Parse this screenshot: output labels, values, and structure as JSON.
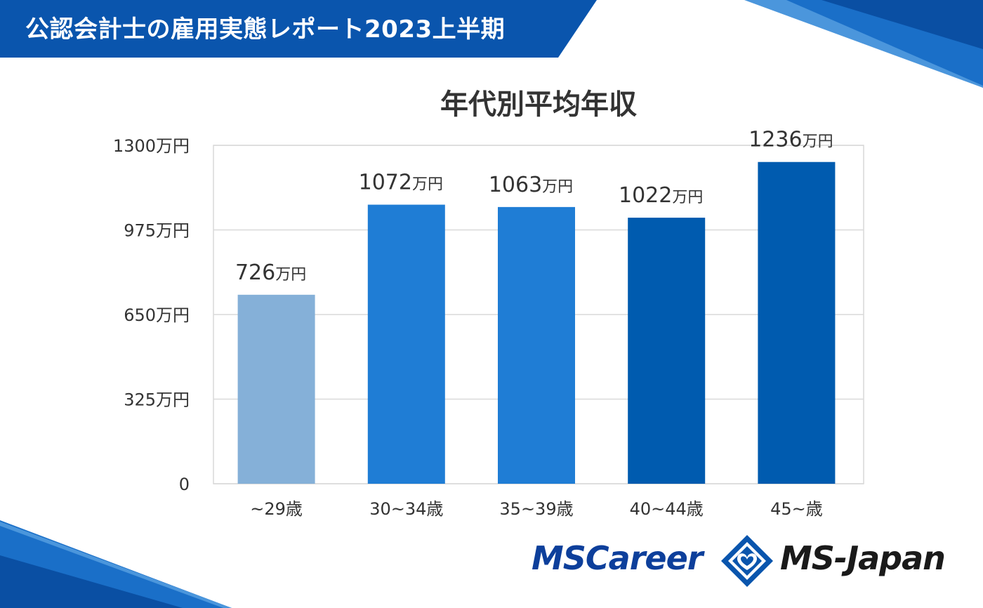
{
  "header": {
    "title": "公認会計士の雇用実態レポート2023上半期"
  },
  "colors": {
    "banner": "#0a55ad",
    "deco_blue": "#1a6fc8",
    "bar_light": "#85b0d8",
    "bar_mid": "#1f7dd5",
    "bar_dark": "#005baf"
  },
  "chart_data": {
    "type": "bar",
    "title": "年代別平均年収",
    "categories": [
      "~29歳",
      "30~34歳",
      "35~39歳",
      "40~44歳",
      "45~歳"
    ],
    "values": [
      726,
      1072,
      1063,
      1022,
      1236
    ],
    "value_labels": [
      "726",
      "1072",
      "1063",
      "1022",
      "1236"
    ],
    "value_unit": "万円",
    "bar_colors": [
      "#85b0d8",
      "#1f7dd5",
      "#1f7dd5",
      "#005baf",
      "#005baf"
    ],
    "ylim": [
      0,
      1300
    ],
    "yticks": [
      0,
      325,
      650,
      975,
      1300
    ],
    "ytick_labels": [
      "0",
      "325万円",
      "650万円",
      "975万円",
      "1300万円"
    ],
    "grid": true,
    "legend": "none"
  },
  "logos": {
    "left": "MSCareer",
    "right": "MS-Japan"
  }
}
